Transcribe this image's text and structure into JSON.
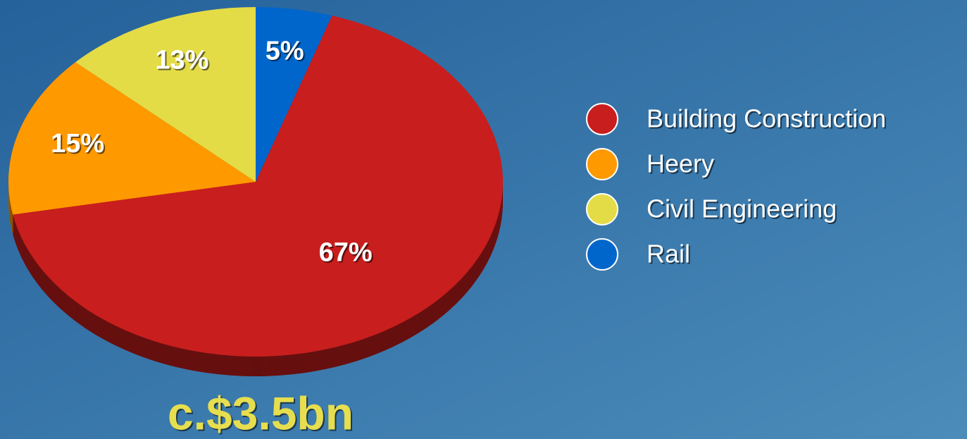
{
  "chart_data": {
    "type": "pie",
    "categories": [
      "Building Construction",
      "Heery",
      "Civil Engineering",
      "Rail"
    ],
    "values": [
      67,
      15,
      13,
      5
    ],
    "value_labels": [
      "67%",
      "15%",
      "13%",
      "5%"
    ],
    "colors": [
      "#c81e1e",
      "#ff9900",
      "#e3dc47",
      "#0066cc"
    ],
    "annotation": "c.$3.5bn",
    "legend": "right"
  }
}
